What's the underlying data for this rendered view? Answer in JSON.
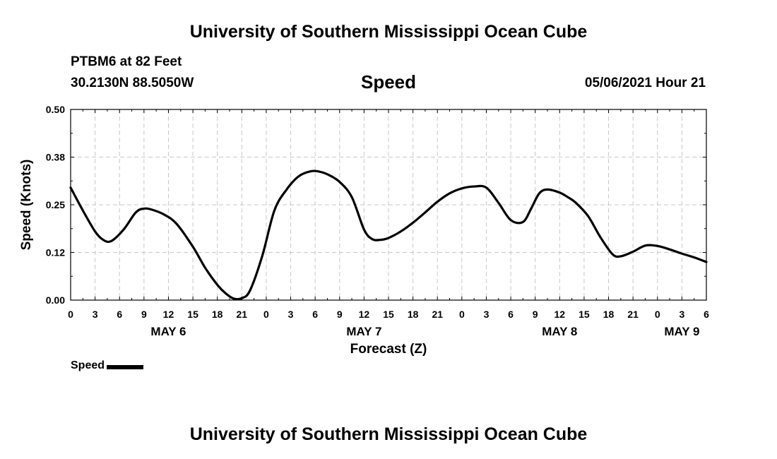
{
  "header": {
    "title": "University of Southern Mississippi Ocean Cube",
    "station": "PTBM6 at 82 Feet",
    "coords": "30.2130N  88.5050W",
    "timestamp": "05/06/2021 Hour 21"
  },
  "footer": {
    "title": "University of Southern Mississippi Ocean Cube"
  },
  "chart_data": {
    "type": "line",
    "title": "Speed",
    "xlabel": "Forecast (Z)",
    "ylabel": "Speed (Knots)",
    "xlim": [
      0,
      78
    ],
    "ylim": [
      0,
      0.5
    ],
    "grid": true,
    "legend_position": "bottom-left",
    "y_ticks": [
      "0.00",
      "0.12",
      "0.25",
      "0.38",
      "0.50"
    ],
    "x_ticks": [
      "0",
      "3",
      "6",
      "9",
      "12",
      "15",
      "18",
      "21",
      "0",
      "3",
      "6",
      "9",
      "12",
      "15",
      "18",
      "21",
      "0",
      "3",
      "6",
      "9",
      "12",
      "15",
      "18",
      "21",
      "0",
      "3",
      "6"
    ],
    "date_labels": [
      {
        "label": "MAY 6",
        "x": 12
      },
      {
        "label": "MAY 7",
        "x": 36
      },
      {
        "label": "MAY 8",
        "x": 60
      },
      {
        "label": "MAY 9",
        "x": 75
      }
    ],
    "series": [
      {
        "name": "Speed",
        "color": "#000000",
        "x": [
          0,
          1.5,
          3,
          4,
          5,
          6.5,
          8,
          9,
          10,
          11.5,
          13,
          15,
          16.5,
          18,
          19,
          20,
          21,
          22,
          23.5,
          25,
          26.5,
          28,
          29.5,
          30.5,
          31.5,
          33,
          34.5,
          36,
          37,
          38,
          39,
          40.5,
          42,
          43.5,
          45,
          46.5,
          48,
          49.5,
          51,
          52.5,
          54,
          55.5,
          56.5,
          57.5,
          58.5,
          60,
          61,
          62,
          63.5,
          65,
          66.5,
          67.5,
          69,
          70.5,
          72,
          73.5,
          75,
          76.5,
          78
        ],
        "values": [
          0.295,
          0.235,
          0.18,
          0.158,
          0.155,
          0.185,
          0.23,
          0.24,
          0.237,
          0.224,
          0.2,
          0.14,
          0.085,
          0.04,
          0.018,
          0.004,
          0.005,
          0.025,
          0.115,
          0.235,
          0.29,
          0.325,
          0.338,
          0.337,
          0.33,
          0.31,
          0.27,
          0.185,
          0.16,
          0.158,
          0.163,
          0.18,
          0.203,
          0.23,
          0.258,
          0.28,
          0.293,
          0.298,
          0.295,
          0.255,
          0.21,
          0.205,
          0.24,
          0.28,
          0.29,
          0.282,
          0.27,
          0.255,
          0.22,
          0.165,
          0.12,
          0.115,
          0.127,
          0.143,
          0.142,
          0.133,
          0.122,
          0.112,
          0.1
        ]
      }
    ]
  }
}
